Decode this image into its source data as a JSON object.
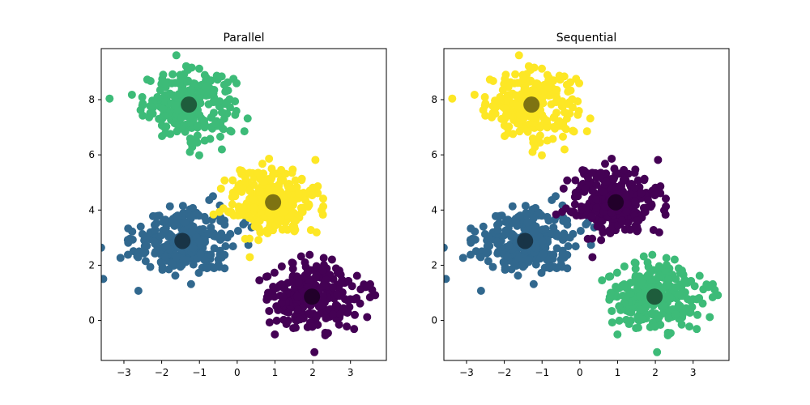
{
  "chart_data": [
    {
      "type": "scatter",
      "title": "Parallel",
      "xlabel": "",
      "ylabel": "",
      "xlim": [
        -3.6,
        3.95
      ],
      "ylim": [
        -1.45,
        9.85
      ],
      "xticks": [
        "−3",
        "−2",
        "−1",
        "0",
        "1",
        "2",
        "3"
      ],
      "yticks": [
        "0",
        "2",
        "4",
        "6",
        "8"
      ],
      "grid": false,
      "clusters": [
        {
          "color": "#3dbb78",
          "center": [
            -1.28,
            7.82
          ],
          "spread": [
            0.6,
            0.6
          ],
          "n": 260
        },
        {
          "color": "#31688e",
          "center": [
            -1.45,
            2.88
          ],
          "spread": [
            0.65,
            0.6
          ],
          "n": 300
        },
        {
          "color": "#fde725",
          "center": [
            0.95,
            4.28
          ],
          "spread": [
            0.6,
            0.6
          ],
          "n": 300
        },
        {
          "color": "#440154",
          "center": [
            1.98,
            0.86
          ],
          "spread": [
            0.6,
            0.6
          ],
          "n": 300
        }
      ],
      "centers": [
        {
          "x": -1.28,
          "y": 7.82
        },
        {
          "x": -1.45,
          "y": 2.88
        },
        {
          "x": 0.95,
          "y": 4.28
        },
        {
          "x": 1.98,
          "y": 0.86
        }
      ]
    },
    {
      "type": "scatter",
      "title": "Sequential",
      "xlabel": "",
      "ylabel": "",
      "xlim": [
        -3.6,
        3.95
      ],
      "ylim": [
        -1.45,
        9.85
      ],
      "xticks": [
        "−3",
        "−2",
        "−1",
        "0",
        "1",
        "2",
        "3"
      ],
      "yticks": [
        "0",
        "2",
        "4",
        "6",
        "8"
      ],
      "grid": false,
      "clusters": [
        {
          "color": "#fde725",
          "center": [
            -1.28,
            7.82
          ],
          "spread": [
            0.6,
            0.6
          ],
          "n": 260
        },
        {
          "color": "#31688e",
          "center": [
            -1.45,
            2.88
          ],
          "spread": [
            0.65,
            0.6
          ],
          "n": 300
        },
        {
          "color": "#440154",
          "center": [
            0.95,
            4.28
          ],
          "spread": [
            0.6,
            0.6
          ],
          "n": 300
        },
        {
          "color": "#3dbb78",
          "center": [
            1.98,
            0.86
          ],
          "spread": [
            0.6,
            0.6
          ],
          "n": 300
        }
      ],
      "centers": [
        {
          "x": -1.28,
          "y": 7.82
        },
        {
          "x": -1.45,
          "y": 2.88
        },
        {
          "x": 0.95,
          "y": 4.28
        },
        {
          "x": 1.98,
          "y": 0.86
        }
      ]
    }
  ]
}
